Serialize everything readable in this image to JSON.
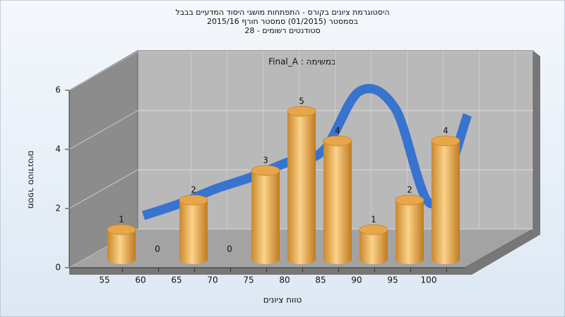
{
  "chart_data": {
    "type": "bar3d",
    "title_lines": [
      "היסטוגרמת ציונים בקורס - התפתחות מושגי היסוד המדעיים בבבל",
      "בסמסטר  (01/2015)  סמסטר חורף 2015/16",
      "סטודנטים רשומים - 28"
    ],
    "annotation": "Final_A : במשימה",
    "x_label": "טווח ציונים",
    "y_label": "מספר סטודנטים",
    "categories": [
      "55",
      "60",
      "65",
      "70",
      "75",
      "80",
      "85",
      "90",
      "95",
      "100"
    ],
    "series": [
      {
        "type": "bar",
        "color": "#e8a64a",
        "values": [
          1,
          0,
          2,
          0,
          3,
          5,
          4,
          1,
          2,
          4
        ]
      },
      {
        "type": "line",
        "color": "#2f6fd0",
        "values": [
          1,
          1.4,
          1.9,
          2.3,
          2.8,
          3.2,
          5.2,
          4.6,
          1.4,
          4.4
        ]
      }
    ],
    "ylim": [
      0,
      6
    ],
    "yticks": [
      0,
      2,
      4,
      6
    ],
    "grid": true
  }
}
